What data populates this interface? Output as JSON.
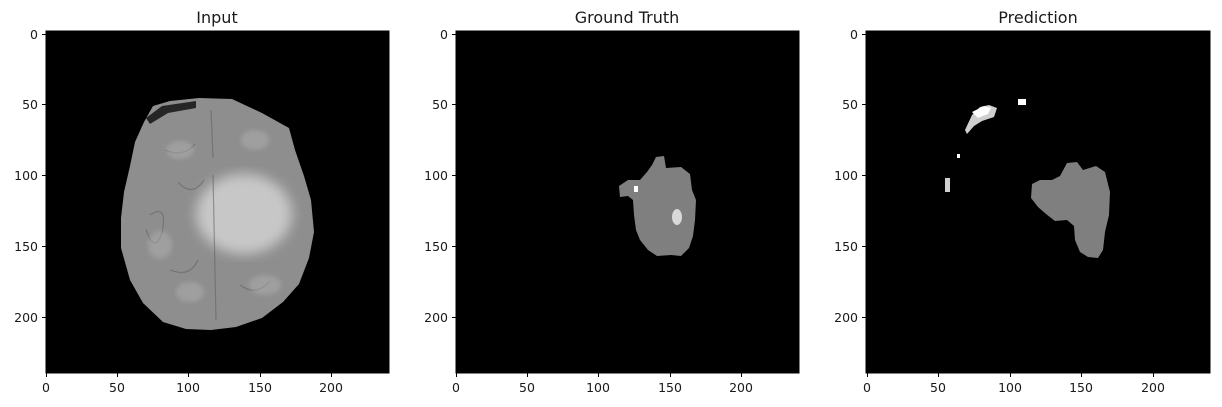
{
  "panels": [
    {
      "id": "input",
      "title": "Input",
      "image": "brain-mri-flair-axial-slice",
      "x_ticks": [
        "0",
        "50",
        "100",
        "150",
        "200"
      ],
      "y_ticks": [
        "0",
        "50",
        "100",
        "150",
        "200"
      ]
    },
    {
      "id": "ground-truth",
      "title": "Ground Truth",
      "image": "tumor-segmentation-mask",
      "x_ticks": [
        "0",
        "50",
        "100",
        "150",
        "200"
      ],
      "y_ticks": [
        "0",
        "50",
        "100",
        "150",
        "200"
      ]
    },
    {
      "id": "prediction",
      "title": "Prediction",
      "image": "predicted-segmentation-mask",
      "x_ticks": [
        "0",
        "50",
        "100",
        "150",
        "200"
      ],
      "y_ticks": [
        "0",
        "50",
        "100",
        "150",
        "200"
      ]
    }
  ],
  "colors": {
    "background": "#000000",
    "brain_tissue": "#9a9a9a",
    "mask_region": "#7f7f7f",
    "mask_highlight": "#ffffff"
  }
}
